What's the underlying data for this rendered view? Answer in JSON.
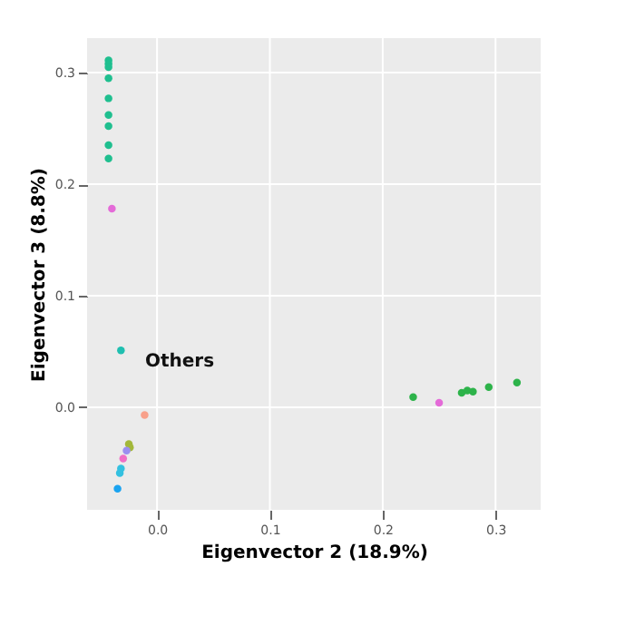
{
  "chart_data": {
    "type": "scatter",
    "xlabel": "Eigenvector 2 (18.9%)",
    "ylabel": "Eigenvector 3 (8.8%)",
    "xlim": [
      -0.062,
      0.34
    ],
    "ylim": [
      -0.092,
      0.331
    ],
    "xticks": [
      {
        "value": 0,
        "label": "0.0"
      },
      0.1,
      0.2,
      0.3
    ],
    "yticks": [
      {
        "value": 0,
        "label": "0.0"
      },
      0.1,
      0.2,
      0.3
    ],
    "grid": true,
    "marker": "circle",
    "series": [
      {
        "color": "#1fbf8f",
        "x": [
          -0.043,
          -0.043,
          -0.043,
          -0.043,
          -0.043,
          -0.043,
          -0.043,
          -0.043,
          -0.043
        ],
        "values": [
          0.311,
          0.308,
          0.305,
          0.295,
          0.277,
          0.262,
          0.252,
          0.235,
          0.223
        ]
      },
      {
        "color": "#e46bd8",
        "x": [
          -0.04,
          0.25
        ],
        "values": [
          0.178,
          0.004
        ]
      },
      {
        "color": "#1fbfb0",
        "x": [
          -0.032
        ],
        "values": [
          0.051
        ]
      },
      {
        "color": "#f8a08a",
        "x": [
          -0.011
        ],
        "values": [
          -0.007
        ]
      },
      {
        "color": "#a3b83a",
        "x": [
          -0.025,
          -0.024
        ],
        "values": [
          -0.033,
          -0.036
        ]
      },
      {
        "color": "#9b8ef0",
        "x": [
          -0.027
        ],
        "values": [
          -0.039
        ]
      },
      {
        "color": "#f06fc6",
        "x": [
          -0.03
        ],
        "values": [
          -0.046
        ]
      },
      {
        "color": "#33c0e0",
        "x": [
          -0.032,
          -0.033
        ],
        "values": [
          -0.055,
          -0.059
        ]
      },
      {
        "color": "#1aa3f0",
        "x": [
          -0.035
        ],
        "values": [
          -0.073
        ]
      },
      {
        "color": "#2db34a",
        "x": [
          0.227,
          0.27,
          0.275,
          0.28,
          0.294,
          0.319
        ],
        "values": [
          0.009,
          0.013,
          0.015,
          0.014,
          0.018,
          0.022
        ]
      }
    ],
    "annotations": [
      "Others"
    ]
  }
}
